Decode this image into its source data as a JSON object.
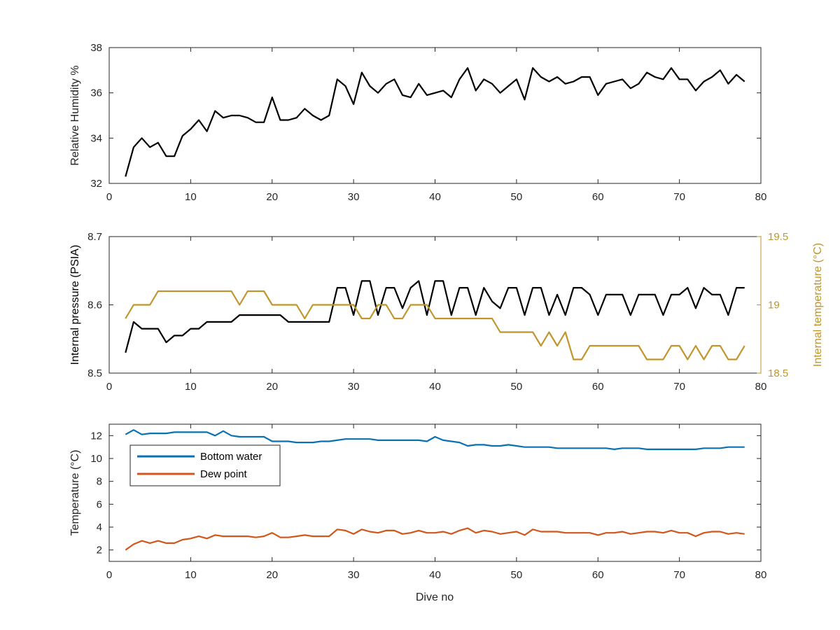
{
  "colors": {
    "humidity": "#000000",
    "pressure": "#000000",
    "internal_temp": "#c0952b",
    "bottom_water": "#0a72b0",
    "dew_point": "#d1571b",
    "axis": "#262626"
  },
  "chart_data": [
    {
      "type": "line",
      "xlim": [
        0,
        80
      ],
      "xticks": [
        0,
        10,
        20,
        30,
        40,
        50,
        60,
        70,
        80
      ],
      "ylabel": "Relative Humidity %",
      "ylim": [
        32,
        38
      ],
      "yticks": [
        32,
        34,
        36,
        38
      ],
      "series": [
        {
          "x": [
            2,
            3,
            4,
            5,
            6,
            7,
            8,
            9,
            10,
            11,
            12,
            13,
            14,
            15,
            16,
            17,
            18,
            19,
            20,
            21,
            22,
            23,
            24,
            25,
            26,
            27,
            28,
            29,
            30,
            31,
            32,
            33,
            34,
            35,
            36,
            37,
            38,
            39,
            40,
            41,
            42,
            43,
            44,
            45,
            46,
            47,
            48,
            49,
            50,
            51,
            52,
            53,
            54,
            55,
            56,
            57,
            58,
            59,
            60,
            61,
            62,
            63,
            64,
            65,
            66,
            67,
            68,
            69,
            70,
            71,
            72,
            73,
            74,
            75,
            76,
            77,
            78
          ],
          "y": [
            32.3,
            33.6,
            34.0,
            33.6,
            33.8,
            33.2,
            33.2,
            34.1,
            34.4,
            34.8,
            34.3,
            35.2,
            34.9,
            35.0,
            35.0,
            34.9,
            34.7,
            34.7,
            35.8,
            34.8,
            34.8,
            34.9,
            35.3,
            35.0,
            34.8,
            35.0,
            36.6,
            36.3,
            35.5,
            36.9,
            36.3,
            36.0,
            36.4,
            36.6,
            35.9,
            35.8,
            36.4,
            35.9,
            36.0,
            36.1,
            35.8,
            36.6,
            37.1,
            36.1,
            36.6,
            36.4,
            36.0,
            36.3,
            36.6,
            35.7,
            37.1,
            36.7,
            36.5,
            36.7,
            36.4,
            36.5,
            36.7,
            36.7,
            35.9,
            36.4,
            36.5,
            36.6,
            36.2,
            36.4,
            36.9,
            36.7,
            36.6,
            37.1,
            36.6,
            36.6,
            36.1,
            36.5,
            36.7,
            37.0,
            36.4,
            36.8,
            36.5
          ]
        }
      ]
    },
    {
      "type": "line",
      "xlim": [
        0,
        80
      ],
      "xticks": [
        0,
        10,
        20,
        30,
        40,
        50,
        60,
        70,
        80
      ],
      "ylabel": "Internal pressure (PSIA)",
      "ylim": [
        8.5,
        8.7
      ],
      "yticks": [
        "8.5",
        "8.6",
        "8.7"
      ],
      "ylabel_right": "Internal temperature (°C)",
      "ylim_right": [
        18.5,
        19.5
      ],
      "yticks_right": [
        "18.5",
        "19",
        "19.5"
      ],
      "series": [
        {
          "axis": "left",
          "x": [
            2,
            3,
            4,
            5,
            6,
            7,
            8,
            9,
            10,
            11,
            12,
            13,
            14,
            15,
            16,
            17,
            18,
            19,
            20,
            21,
            22,
            23,
            24,
            25,
            26,
            27,
            28,
            29,
            30,
            31,
            32,
            33,
            34,
            35,
            36,
            37,
            38,
            39,
            40,
            41,
            42,
            43,
            44,
            45,
            46,
            47,
            48,
            49,
            50,
            51,
            52,
            53,
            54,
            55,
            56,
            57,
            58,
            59,
            60,
            61,
            62,
            63,
            64,
            65,
            66,
            67,
            68,
            69,
            70,
            71,
            72,
            73,
            74,
            75,
            76,
            77,
            78
          ],
          "y": [
            8.53,
            8.575,
            8.565,
            8.565,
            8.565,
            8.545,
            8.555,
            8.555,
            8.565,
            8.565,
            8.575,
            8.575,
            8.575,
            8.575,
            8.585,
            8.585,
            8.585,
            8.585,
            8.585,
            8.585,
            8.575,
            8.575,
            8.575,
            8.575,
            8.575,
            8.575,
            8.625,
            8.625,
            8.585,
            8.635,
            8.635,
            8.585,
            8.625,
            8.625,
            8.595,
            8.625,
            8.635,
            8.585,
            8.635,
            8.635,
            8.585,
            8.625,
            8.625,
            8.585,
            8.625,
            8.605,
            8.595,
            8.625,
            8.625,
            8.585,
            8.625,
            8.625,
            8.585,
            8.615,
            8.585,
            8.625,
            8.625,
            8.615,
            8.585,
            8.615,
            8.615,
            8.615,
            8.585,
            8.615,
            8.615,
            8.615,
            8.585,
            8.615,
            8.615,
            8.625,
            8.595,
            8.625,
            8.615,
            8.615,
            8.585,
            8.625,
            8.625
          ]
        },
        {
          "axis": "right",
          "x": [
            2,
            3,
            4,
            5,
            6,
            7,
            8,
            9,
            10,
            11,
            12,
            13,
            14,
            15,
            16,
            17,
            18,
            19,
            20,
            21,
            22,
            23,
            24,
            25,
            26,
            27,
            28,
            29,
            30,
            31,
            32,
            33,
            34,
            35,
            36,
            37,
            38,
            39,
            40,
            41,
            42,
            43,
            44,
            45,
            46,
            47,
            48,
            49,
            50,
            51,
            52,
            53,
            54,
            55,
            56,
            57,
            58,
            59,
            60,
            61,
            62,
            63,
            64,
            65,
            66,
            67,
            68,
            69,
            70,
            71,
            72,
            73,
            74,
            75,
            76,
            77,
            78
          ],
          "y": [
            18.9,
            19.0,
            19.0,
            19.0,
            19.1,
            19.1,
            19.1,
            19.1,
            19.1,
            19.1,
            19.1,
            19.1,
            19.1,
            19.1,
            19.0,
            19.1,
            19.1,
            19.1,
            19.0,
            19.0,
            19.0,
            19.0,
            18.9,
            19.0,
            19.0,
            19.0,
            19.0,
            19.0,
            19.0,
            18.9,
            18.9,
            19.0,
            19.0,
            18.9,
            18.9,
            19.0,
            19.0,
            19.0,
            18.9,
            18.9,
            18.9,
            18.9,
            18.9,
            18.9,
            18.9,
            18.9,
            18.8,
            18.8,
            18.8,
            18.8,
            18.8,
            18.7,
            18.8,
            18.7,
            18.8,
            18.6,
            18.6,
            18.7,
            18.7,
            18.7,
            18.7,
            18.7,
            18.7,
            18.7,
            18.6,
            18.6,
            18.6,
            18.7,
            18.7,
            18.6,
            18.7,
            18.6,
            18.7,
            18.7,
            18.6,
            18.6,
            18.7
          ]
        }
      ]
    },
    {
      "type": "line",
      "xlim": [
        0,
        80
      ],
      "xticks": [
        0,
        10,
        20,
        30,
        40,
        50,
        60,
        70,
        80
      ],
      "xlabel": "Dive no",
      "ylabel": "Temperature (°C)",
      "ylim": [
        1,
        13
      ],
      "yticks": [
        2,
        4,
        6,
        8,
        10,
        12
      ],
      "legend": "top-left",
      "series": [
        {
          "name": "Bottom water",
          "x": [
            2,
            3,
            4,
            5,
            6,
            7,
            8,
            9,
            10,
            11,
            12,
            13,
            14,
            15,
            16,
            17,
            18,
            19,
            20,
            21,
            22,
            23,
            24,
            25,
            26,
            27,
            28,
            29,
            30,
            31,
            32,
            33,
            34,
            35,
            36,
            37,
            38,
            39,
            40,
            41,
            42,
            43,
            44,
            45,
            46,
            47,
            48,
            49,
            50,
            51,
            52,
            53,
            54,
            55,
            56,
            57,
            58,
            59,
            60,
            61,
            62,
            63,
            64,
            65,
            66,
            67,
            68,
            69,
            70,
            71,
            72,
            73,
            74,
            75,
            76,
            77,
            78
          ],
          "y": [
            12.1,
            12.5,
            12.1,
            12.2,
            12.2,
            12.2,
            12.3,
            12.3,
            12.3,
            12.3,
            12.3,
            12.0,
            12.4,
            12.0,
            11.9,
            11.9,
            11.9,
            11.9,
            11.5,
            11.5,
            11.5,
            11.4,
            11.4,
            11.4,
            11.5,
            11.5,
            11.6,
            11.7,
            11.7,
            11.7,
            11.7,
            11.6,
            11.6,
            11.6,
            11.6,
            11.6,
            11.6,
            11.5,
            11.9,
            11.6,
            11.5,
            11.4,
            11.1,
            11.2,
            11.2,
            11.1,
            11.1,
            11.2,
            11.1,
            11.0,
            11.0,
            11.0,
            11.0,
            10.9,
            10.9,
            10.9,
            10.9,
            10.9,
            10.9,
            10.9,
            10.8,
            10.9,
            10.9,
            10.9,
            10.8,
            10.8,
            10.8,
            10.8,
            10.8,
            10.8,
            10.8,
            10.9,
            10.9,
            10.9,
            11.0,
            11.0,
            11.0
          ]
        },
        {
          "name": "Dew point",
          "x": [
            2,
            3,
            4,
            5,
            6,
            7,
            8,
            9,
            10,
            11,
            12,
            13,
            14,
            15,
            16,
            17,
            18,
            19,
            20,
            21,
            22,
            23,
            24,
            25,
            26,
            27,
            28,
            29,
            30,
            31,
            32,
            33,
            34,
            35,
            36,
            37,
            38,
            39,
            40,
            41,
            42,
            43,
            44,
            45,
            46,
            47,
            48,
            49,
            50,
            51,
            52,
            53,
            54,
            55,
            56,
            57,
            58,
            59,
            60,
            61,
            62,
            63,
            64,
            65,
            66,
            67,
            68,
            69,
            70,
            71,
            72,
            73,
            74,
            75,
            76,
            77,
            78
          ],
          "y": [
            2.0,
            2.5,
            2.8,
            2.6,
            2.8,
            2.6,
            2.6,
            2.9,
            3.0,
            3.2,
            3.0,
            3.3,
            3.2,
            3.2,
            3.2,
            3.2,
            3.1,
            3.2,
            3.5,
            3.1,
            3.1,
            3.2,
            3.3,
            3.2,
            3.2,
            3.2,
            3.8,
            3.7,
            3.4,
            3.8,
            3.6,
            3.5,
            3.7,
            3.7,
            3.4,
            3.5,
            3.7,
            3.5,
            3.5,
            3.6,
            3.4,
            3.7,
            3.9,
            3.5,
            3.7,
            3.6,
            3.4,
            3.5,
            3.6,
            3.3,
            3.8,
            3.6,
            3.6,
            3.6,
            3.5,
            3.5,
            3.5,
            3.5,
            3.3,
            3.5,
            3.5,
            3.6,
            3.4,
            3.5,
            3.6,
            3.6,
            3.5,
            3.7,
            3.5,
            3.5,
            3.2,
            3.5,
            3.6,
            3.6,
            3.4,
            3.5,
            3.4
          ]
        }
      ]
    }
  ]
}
